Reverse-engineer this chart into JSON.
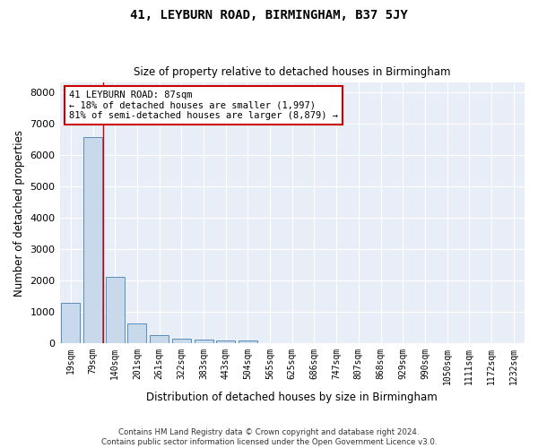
{
  "title": "41, LEYBURN ROAD, BIRMINGHAM, B37 5JY",
  "subtitle": "Size of property relative to detached houses in Birmingham",
  "xlabel": "Distribution of detached houses by size in Birmingham",
  "ylabel": "Number of detached properties",
  "footer_line1": "Contains HM Land Registry data © Crown copyright and database right 2024.",
  "footer_line2": "Contains public sector information licensed under the Open Government Licence v3.0.",
  "annotation_title": "41 LEYBURN ROAD: 87sqm",
  "annotation_line2": "← 18% of detached houses are smaller (1,997)",
  "annotation_line3": "81% of semi-detached houses are larger (8,879) →",
  "bar_color": "#c9d9ec",
  "bar_edge_color": "#5b8db8",
  "vline_color": "#cc0000",
  "annotation_box_color": "#cc0000",
  "background_color": "#e8eef7",
  "grid_color": "#ffffff",
  "fig_background": "#ffffff",
  "categories": [
    "19sqm",
    "79sqm",
    "140sqm",
    "201sqm",
    "261sqm",
    "322sqm",
    "383sqm",
    "443sqm",
    "504sqm",
    "565sqm",
    "625sqm",
    "686sqm",
    "747sqm",
    "807sqm",
    "868sqm",
    "929sqm",
    "990sqm",
    "1050sqm",
    "1111sqm",
    "1172sqm",
    "1232sqm"
  ],
  "values": [
    1280,
    6580,
    2100,
    630,
    250,
    130,
    100,
    70,
    70,
    0,
    0,
    0,
    0,
    0,
    0,
    0,
    0,
    0,
    0,
    0,
    0
  ],
  "vline_x": 1.45,
  "ylim": [
    0,
    8300
  ],
  "yticks": [
    0,
    1000,
    2000,
    3000,
    4000,
    5000,
    6000,
    7000,
    8000
  ]
}
